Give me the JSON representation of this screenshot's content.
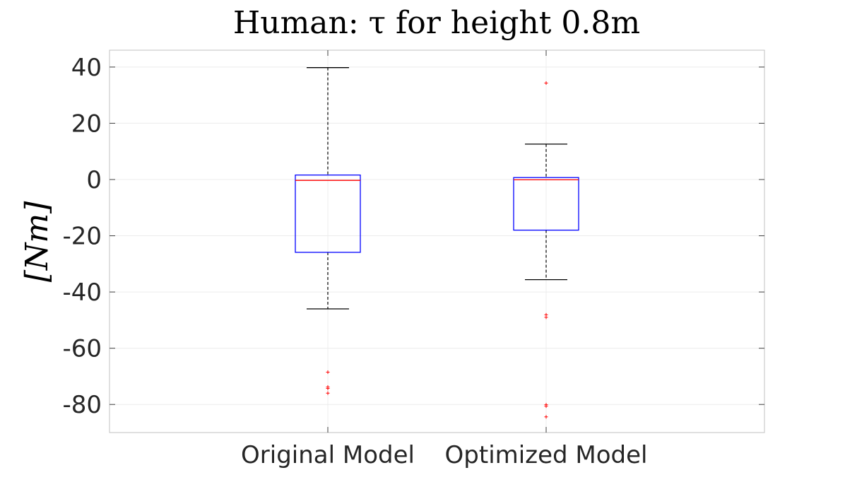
{
  "chart_data": {
    "type": "boxplot",
    "title": "Human: τ for height 0.8m",
    "xlabel": "",
    "ylabel": "[Nm]",
    "ylim": [
      -90,
      46
    ],
    "yticks": [
      40,
      20,
      0,
      -20,
      -40,
      -60,
      -80
    ],
    "grid": true,
    "categories": [
      "Original Model",
      "Optimized Model"
    ],
    "boxes": [
      {
        "category": "Original Model",
        "whisker_high": 39.8,
        "q3": 1.6,
        "median": -0.3,
        "q1": -25.9,
        "whisker_low": -46.0,
        "outliers": [
          -68.5,
          -73.8,
          -74.3,
          -76.0
        ]
      },
      {
        "category": "Optimized Model",
        "whisker_high": 12.6,
        "q3": 0.7,
        "median": -0.1,
        "q1": -18.0,
        "whisker_low": -35.6,
        "outliers": [
          34.3,
          -48.1,
          -49.0,
          -80.1,
          -80.6,
          -84.4
        ]
      }
    ],
    "colors": {
      "box": "#0000ff",
      "median": "#ff0000",
      "whisker": "#000000",
      "outlier": "#ff0000",
      "grid": "#ececec",
      "axis": "#c0c0c0"
    }
  }
}
